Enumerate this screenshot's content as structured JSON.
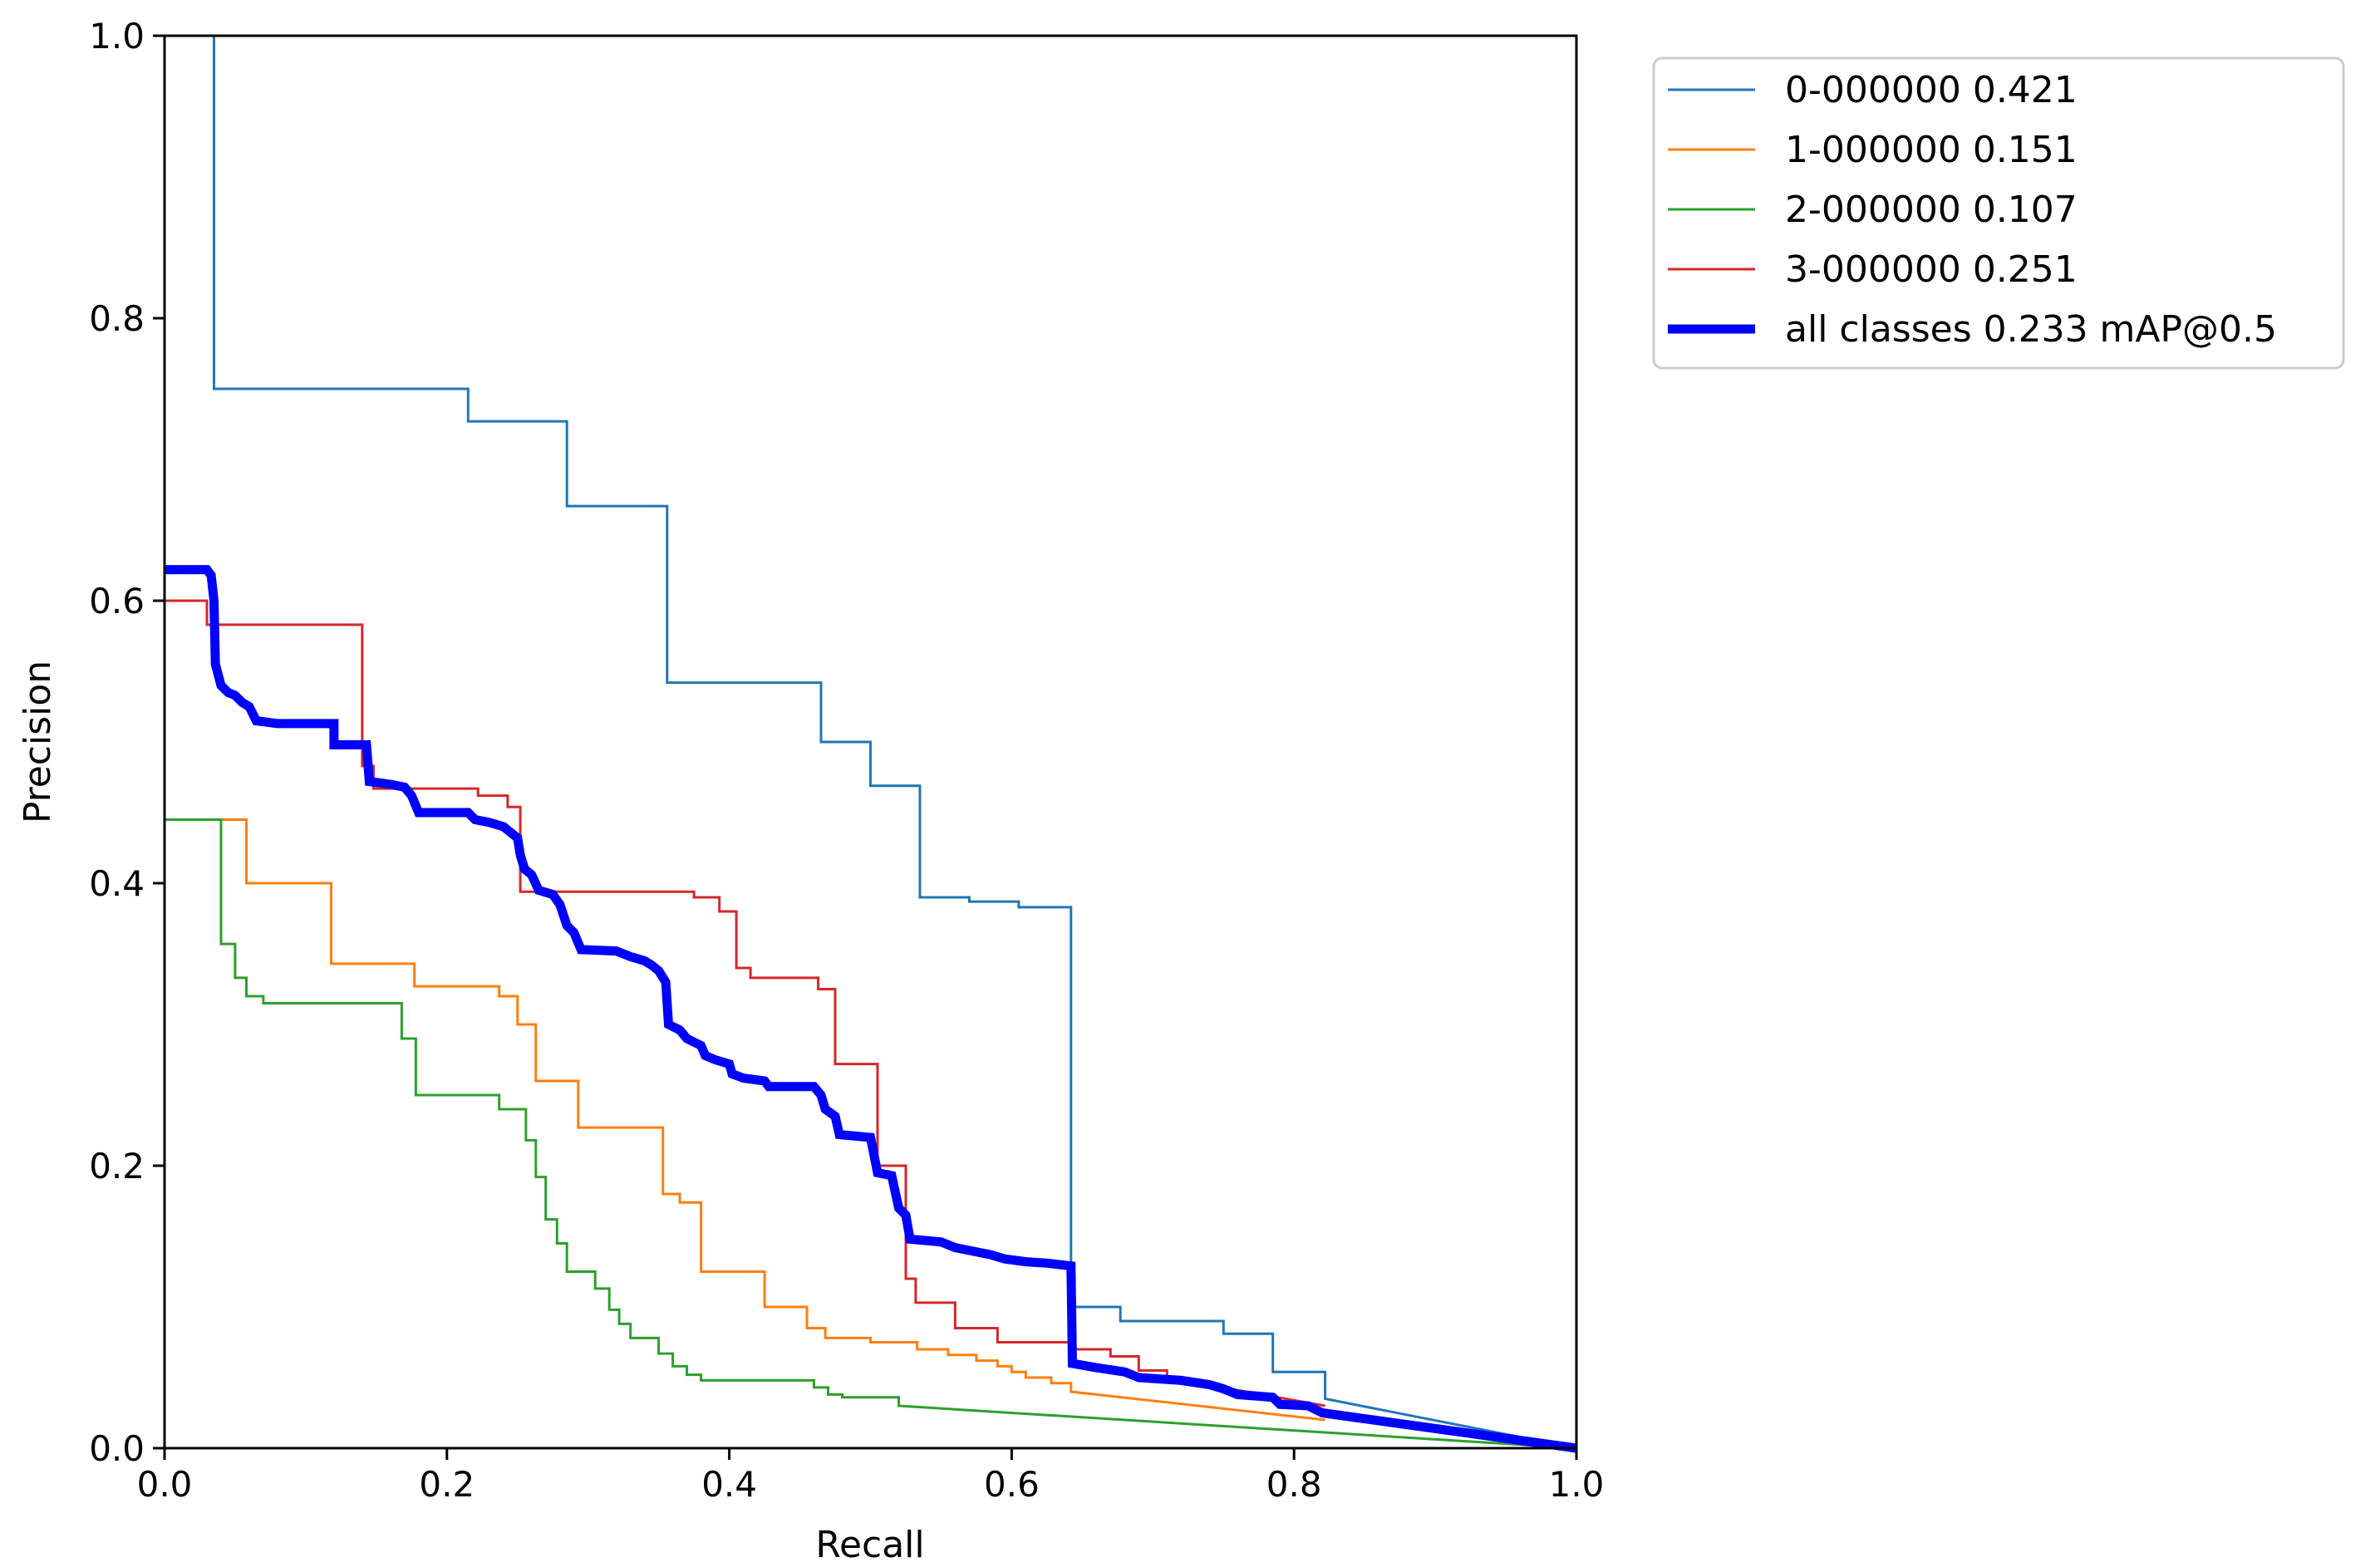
{
  "chart_data": {
    "type": "line",
    "title": "",
    "xlabel": "Recall",
    "ylabel": "Precision",
    "xlim": [
      0,
      1
    ],
    "ylim": [
      0,
      1
    ],
    "xticks": [
      "0.0",
      "0.2",
      "0.4",
      "0.6",
      "0.8",
      "1.0"
    ],
    "yticks": [
      "0.0",
      "0.2",
      "0.4",
      "0.6",
      "0.8",
      "1.0"
    ],
    "grid": false,
    "legend_position": "outside-top-right",
    "series": [
      {
        "name": "0-000000 0.421",
        "color": "#1f77b4",
        "linewidth": 3,
        "points": [
          [
            0.035,
            1.0
          ],
          [
            0.035,
            0.75
          ],
          [
            0.215,
            0.75
          ],
          [
            0.215,
            0.727
          ],
          [
            0.285,
            0.727
          ],
          [
            0.285,
            0.667
          ],
          [
            0.356,
            0.667
          ],
          [
            0.356,
            0.542
          ],
          [
            0.465,
            0.542
          ],
          [
            0.465,
            0.5
          ],
          [
            0.5,
            0.5
          ],
          [
            0.5,
            0.469
          ],
          [
            0.535,
            0.469
          ],
          [
            0.535,
            0.39
          ],
          [
            0.57,
            0.39
          ],
          [
            0.57,
            0.387
          ],
          [
            0.605,
            0.387
          ],
          [
            0.605,
            0.383
          ],
          [
            0.642,
            0.383
          ],
          [
            0.642,
            0.1
          ],
          [
            0.677,
            0.1
          ],
          [
            0.677,
            0.09
          ],
          [
            0.75,
            0.09
          ],
          [
            0.75,
            0.081
          ],
          [
            0.785,
            0.081
          ],
          [
            0.785,
            0.054
          ],
          [
            0.822,
            0.054
          ],
          [
            0.822,
            0.035
          ],
          [
            1.0,
            0.0
          ]
        ]
      },
      {
        "name": "1-000000 0.151",
        "color": "#ff7f0e",
        "linewidth": 3,
        "points": [
          [
            0.0,
            0.445
          ],
          [
            0.058,
            0.445
          ],
          [
            0.058,
            0.4
          ],
          [
            0.118,
            0.4
          ],
          [
            0.118,
            0.343
          ],
          [
            0.177,
            0.343
          ],
          [
            0.177,
            0.327
          ],
          [
            0.237,
            0.327
          ],
          [
            0.237,
            0.32
          ],
          [
            0.25,
            0.32
          ],
          [
            0.25,
            0.3
          ],
          [
            0.263,
            0.3
          ],
          [
            0.263,
            0.26
          ],
          [
            0.293,
            0.26
          ],
          [
            0.293,
            0.227
          ],
          [
            0.353,
            0.227
          ],
          [
            0.353,
            0.18
          ],
          [
            0.365,
            0.18
          ],
          [
            0.365,
            0.174
          ],
          [
            0.38,
            0.174
          ],
          [
            0.38,
            0.125
          ],
          [
            0.425,
            0.125
          ],
          [
            0.425,
            0.1
          ],
          [
            0.455,
            0.1
          ],
          [
            0.455,
            0.085
          ],
          [
            0.468,
            0.085
          ],
          [
            0.468,
            0.078
          ],
          [
            0.5,
            0.078
          ],
          [
            0.5,
            0.075
          ],
          [
            0.533,
            0.075
          ],
          [
            0.533,
            0.07
          ],
          [
            0.555,
            0.07
          ],
          [
            0.555,
            0.066
          ],
          [
            0.575,
            0.066
          ],
          [
            0.575,
            0.062
          ],
          [
            0.59,
            0.062
          ],
          [
            0.59,
            0.058
          ],
          [
            0.6,
            0.058
          ],
          [
            0.6,
            0.054
          ],
          [
            0.61,
            0.054
          ],
          [
            0.61,
            0.05
          ],
          [
            0.628,
            0.05
          ],
          [
            0.628,
            0.046
          ],
          [
            0.642,
            0.046
          ],
          [
            0.642,
            0.04
          ],
          [
            0.822,
            0.02
          ]
        ]
      },
      {
        "name": "2-000000 0.107",
        "color": "#2ca02c",
        "linewidth": 3,
        "points": [
          [
            0.0,
            0.445
          ],
          [
            0.04,
            0.445
          ],
          [
            0.04,
            0.357
          ],
          [
            0.05,
            0.357
          ],
          [
            0.05,
            0.333
          ],
          [
            0.058,
            0.333
          ],
          [
            0.058,
            0.32
          ],
          [
            0.07,
            0.32
          ],
          [
            0.07,
            0.315
          ],
          [
            0.168,
            0.315
          ],
          [
            0.168,
            0.29
          ],
          [
            0.178,
            0.29
          ],
          [
            0.178,
            0.25
          ],
          [
            0.237,
            0.25
          ],
          [
            0.237,
            0.24
          ],
          [
            0.256,
            0.24
          ],
          [
            0.256,
            0.218
          ],
          [
            0.263,
            0.218
          ],
          [
            0.263,
            0.192
          ],
          [
            0.27,
            0.192
          ],
          [
            0.27,
            0.162
          ],
          [
            0.278,
            0.162
          ],
          [
            0.278,
            0.145
          ],
          [
            0.285,
            0.145
          ],
          [
            0.285,
            0.125
          ],
          [
            0.305,
            0.125
          ],
          [
            0.305,
            0.113
          ],
          [
            0.315,
            0.113
          ],
          [
            0.315,
            0.098
          ],
          [
            0.322,
            0.098
          ],
          [
            0.322,
            0.088
          ],
          [
            0.33,
            0.088
          ],
          [
            0.33,
            0.078
          ],
          [
            0.35,
            0.078
          ],
          [
            0.35,
            0.067
          ],
          [
            0.36,
            0.067
          ],
          [
            0.36,
            0.058
          ],
          [
            0.37,
            0.058
          ],
          [
            0.37,
            0.052
          ],
          [
            0.38,
            0.052
          ],
          [
            0.38,
            0.048
          ],
          [
            0.46,
            0.048
          ],
          [
            0.46,
            0.043
          ],
          [
            0.47,
            0.043
          ],
          [
            0.47,
            0.038
          ],
          [
            0.48,
            0.038
          ],
          [
            0.48,
            0.036
          ],
          [
            0.52,
            0.036
          ],
          [
            0.52,
            0.03
          ],
          [
            1.0,
            0.0
          ]
        ]
      },
      {
        "name": "3-000000 0.251",
        "color": "#d62728",
        "linewidth": 3,
        "points": [
          [
            0.0,
            0.6
          ],
          [
            0.03,
            0.6
          ],
          [
            0.03,
            0.583
          ],
          [
            0.14,
            0.583
          ],
          [
            0.14,
            0.483
          ],
          [
            0.148,
            0.483
          ],
          [
            0.148,
            0.467
          ],
          [
            0.222,
            0.467
          ],
          [
            0.222,
            0.462
          ],
          [
            0.243,
            0.462
          ],
          [
            0.243,
            0.454
          ],
          [
            0.252,
            0.454
          ],
          [
            0.252,
            0.394
          ],
          [
            0.375,
            0.394
          ],
          [
            0.375,
            0.39
          ],
          [
            0.393,
            0.39
          ],
          [
            0.393,
            0.38
          ],
          [
            0.405,
            0.38
          ],
          [
            0.405,
            0.34
          ],
          [
            0.415,
            0.34
          ],
          [
            0.415,
            0.333
          ],
          [
            0.463,
            0.333
          ],
          [
            0.463,
            0.325
          ],
          [
            0.475,
            0.325
          ],
          [
            0.475,
            0.272
          ],
          [
            0.505,
            0.272
          ],
          [
            0.505,
            0.2
          ],
          [
            0.525,
            0.2
          ],
          [
            0.525,
            0.12
          ],
          [
            0.532,
            0.12
          ],
          [
            0.532,
            0.103
          ],
          [
            0.56,
            0.103
          ],
          [
            0.56,
            0.085
          ],
          [
            0.59,
            0.085
          ],
          [
            0.59,
            0.075
          ],
          [
            0.642,
            0.075
          ],
          [
            0.642,
            0.07
          ],
          [
            0.67,
            0.07
          ],
          [
            0.67,
            0.065
          ],
          [
            0.69,
            0.065
          ],
          [
            0.69,
            0.055
          ],
          [
            0.71,
            0.055
          ],
          [
            0.71,
            0.05
          ],
          [
            0.822,
            0.03
          ]
        ]
      },
      {
        "name": "all classes 0.233 mAP@0.5",
        "color": "#0000ff",
        "linewidth": 11,
        "points": [
          [
            0.0,
            0.622
          ],
          [
            0.03,
            0.622
          ],
          [
            0.033,
            0.618
          ],
          [
            0.035,
            0.6
          ],
          [
            0.036,
            0.555
          ],
          [
            0.04,
            0.54
          ],
          [
            0.045,
            0.535
          ],
          [
            0.05,
            0.533
          ],
          [
            0.055,
            0.528
          ],
          [
            0.06,
            0.525
          ],
          [
            0.065,
            0.515
          ],
          [
            0.08,
            0.513
          ],
          [
            0.12,
            0.513
          ],
          [
            0.12,
            0.498
          ],
          [
            0.143,
            0.498
          ],
          [
            0.145,
            0.472
          ],
          [
            0.16,
            0.47
          ],
          [
            0.17,
            0.468
          ],
          [
            0.175,
            0.462
          ],
          [
            0.18,
            0.45
          ],
          [
            0.215,
            0.45
          ],
          [
            0.22,
            0.445
          ],
          [
            0.23,
            0.443
          ],
          [
            0.24,
            0.44
          ],
          [
            0.25,
            0.432
          ],
          [
            0.252,
            0.42
          ],
          [
            0.255,
            0.41
          ],
          [
            0.26,
            0.406
          ],
          [
            0.265,
            0.395
          ],
          [
            0.275,
            0.392
          ],
          [
            0.28,
            0.385
          ],
          [
            0.285,
            0.37
          ],
          [
            0.29,
            0.365
          ],
          [
            0.295,
            0.353
          ],
          [
            0.32,
            0.352
          ],
          [
            0.33,
            0.348
          ],
          [
            0.34,
            0.345
          ],
          [
            0.345,
            0.342
          ],
          [
            0.35,
            0.338
          ],
          [
            0.355,
            0.33
          ],
          [
            0.357,
            0.3
          ],
          [
            0.365,
            0.296
          ],
          [
            0.37,
            0.29
          ],
          [
            0.38,
            0.285
          ],
          [
            0.383,
            0.278
          ],
          [
            0.39,
            0.275
          ],
          [
            0.4,
            0.272
          ],
          [
            0.402,
            0.265
          ],
          [
            0.41,
            0.262
          ],
          [
            0.425,
            0.26
          ],
          [
            0.428,
            0.256
          ],
          [
            0.46,
            0.256
          ],
          [
            0.465,
            0.25
          ],
          [
            0.468,
            0.24
          ],
          [
            0.475,
            0.235
          ],
          [
            0.478,
            0.222
          ],
          [
            0.5,
            0.22
          ],
          [
            0.502,
            0.21
          ],
          [
            0.505,
            0.195
          ],
          [
            0.515,
            0.193
          ],
          [
            0.52,
            0.17
          ],
          [
            0.525,
            0.165
          ],
          [
            0.528,
            0.148
          ],
          [
            0.55,
            0.146
          ],
          [
            0.56,
            0.142
          ],
          [
            0.57,
            0.14
          ],
          [
            0.585,
            0.137
          ],
          [
            0.595,
            0.134
          ],
          [
            0.61,
            0.132
          ],
          [
            0.625,
            0.131
          ],
          [
            0.642,
            0.129
          ],
          [
            0.643,
            0.06
          ],
          [
            0.66,
            0.057
          ],
          [
            0.68,
            0.054
          ],
          [
            0.69,
            0.05
          ],
          [
            0.72,
            0.048
          ],
          [
            0.74,
            0.045
          ],
          [
            0.75,
            0.042
          ],
          [
            0.76,
            0.038
          ],
          [
            0.785,
            0.036
          ],
          [
            0.79,
            0.031
          ],
          [
            0.81,
            0.03
          ],
          [
            0.82,
            0.025
          ],
          [
            1.0,
            0.0
          ]
        ]
      }
    ]
  }
}
